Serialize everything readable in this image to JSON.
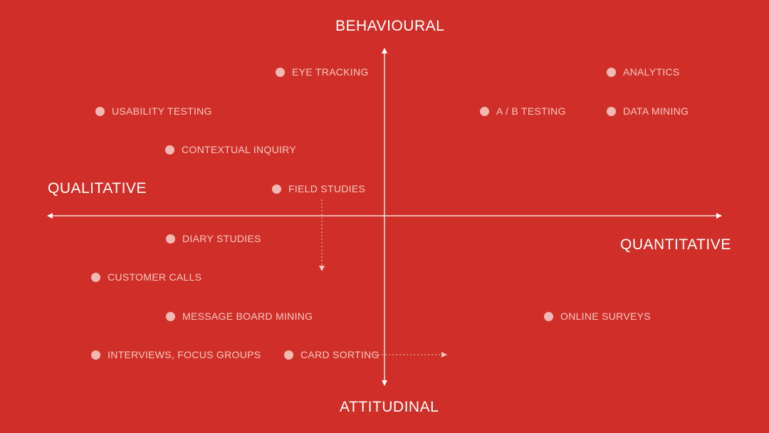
{
  "axes": {
    "top": "BEHAVIOURAL",
    "bottom": "ATTITUDINAL",
    "left": "QUALITATIVE",
    "right": "QUANTITATIVE"
  },
  "colors": {
    "background": "#cf2f28",
    "axis": "#ffffff",
    "dot": "#f2b8b3",
    "method_text": "#f5c6c1"
  },
  "methods": [
    {
      "id": "eye-tracking",
      "label": "EYE TRACKING"
    },
    {
      "id": "analytics",
      "label": "ANALYTICS"
    },
    {
      "id": "usability-testing",
      "label": "USABILITY TESTING"
    },
    {
      "id": "ab-testing",
      "label": "A / B TESTING"
    },
    {
      "id": "data-mining",
      "label": "DATA MINING"
    },
    {
      "id": "contextual-inquiry",
      "label": "CONTEXTUAL INQUIRY"
    },
    {
      "id": "field-studies",
      "label": "FIELD STUDIES"
    },
    {
      "id": "diary-studies",
      "label": "DIARY STUDIES"
    },
    {
      "id": "customer-calls",
      "label": "CUSTOMER CALLS"
    },
    {
      "id": "message-board-mining",
      "label": "MESSAGE BOARD MINING"
    },
    {
      "id": "online-surveys",
      "label": "ONLINE SURVEYS"
    },
    {
      "id": "interviews-focus-groups",
      "label": "INTERVIEWS, FOCUS GROUPS"
    },
    {
      "id": "card-sorting",
      "label": "CARD SORTING"
    }
  ]
}
